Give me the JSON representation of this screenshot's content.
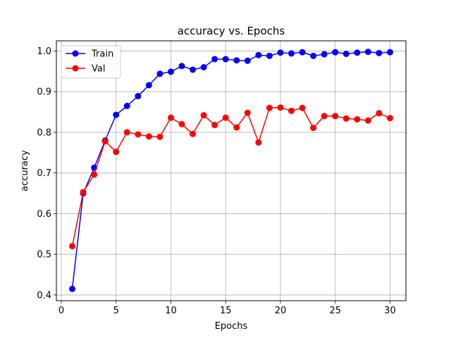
{
  "chart_data": {
    "type": "line",
    "title": "accuracy vs. Epochs",
    "xlabel": "Epochs",
    "ylabel": "accuracy",
    "xlim": [
      -0.45,
      31.45
    ],
    "ylim": [
      0.386,
      1.025
    ],
    "xticks": [
      0,
      5,
      10,
      15,
      20,
      25,
      30
    ],
    "yticks": [
      0.4,
      0.5,
      0.6,
      0.7,
      0.8,
      0.9,
      1.0
    ],
    "ytick_labels": [
      "0.4",
      "0.5",
      "0.6",
      "0.7",
      "0.8",
      "0.9",
      "1.0"
    ],
    "grid": true,
    "legend_position": "upper-left",
    "x": [
      1,
      2,
      3,
      4,
      5,
      6,
      7,
      8,
      9,
      10,
      11,
      12,
      13,
      14,
      15,
      16,
      17,
      18,
      19,
      20,
      21,
      22,
      23,
      24,
      25,
      26,
      27,
      28,
      29,
      30
    ],
    "series": [
      {
        "name": "Train",
        "color": "#0000ff",
        "marker": "circle",
        "values": [
          0.415,
          0.65,
          0.713,
          0.78,
          0.843,
          0.865,
          0.889,
          0.916,
          0.944,
          0.949,
          0.963,
          0.954,
          0.96,
          0.98,
          0.98,
          0.977,
          0.976,
          0.99,
          0.988,
          0.996,
          0.994,
          0.997,
          0.988,
          0.992,
          0.997,
          0.993,
          0.996,
          0.998,
          0.995,
          0.997
        ]
      },
      {
        "name": "Val",
        "color": "#ff0000",
        "marker": "circle",
        "values": [
          0.52,
          0.653,
          0.696,
          0.778,
          0.752,
          0.8,
          0.795,
          0.79,
          0.789,
          0.836,
          0.82,
          0.796,
          0.842,
          0.818,
          0.836,
          0.812,
          0.848,
          0.775,
          0.86,
          0.861,
          0.853,
          0.86,
          0.811,
          0.84,
          0.84,
          0.834,
          0.832,
          0.829,
          0.847,
          0.835
        ]
      }
    ]
  }
}
